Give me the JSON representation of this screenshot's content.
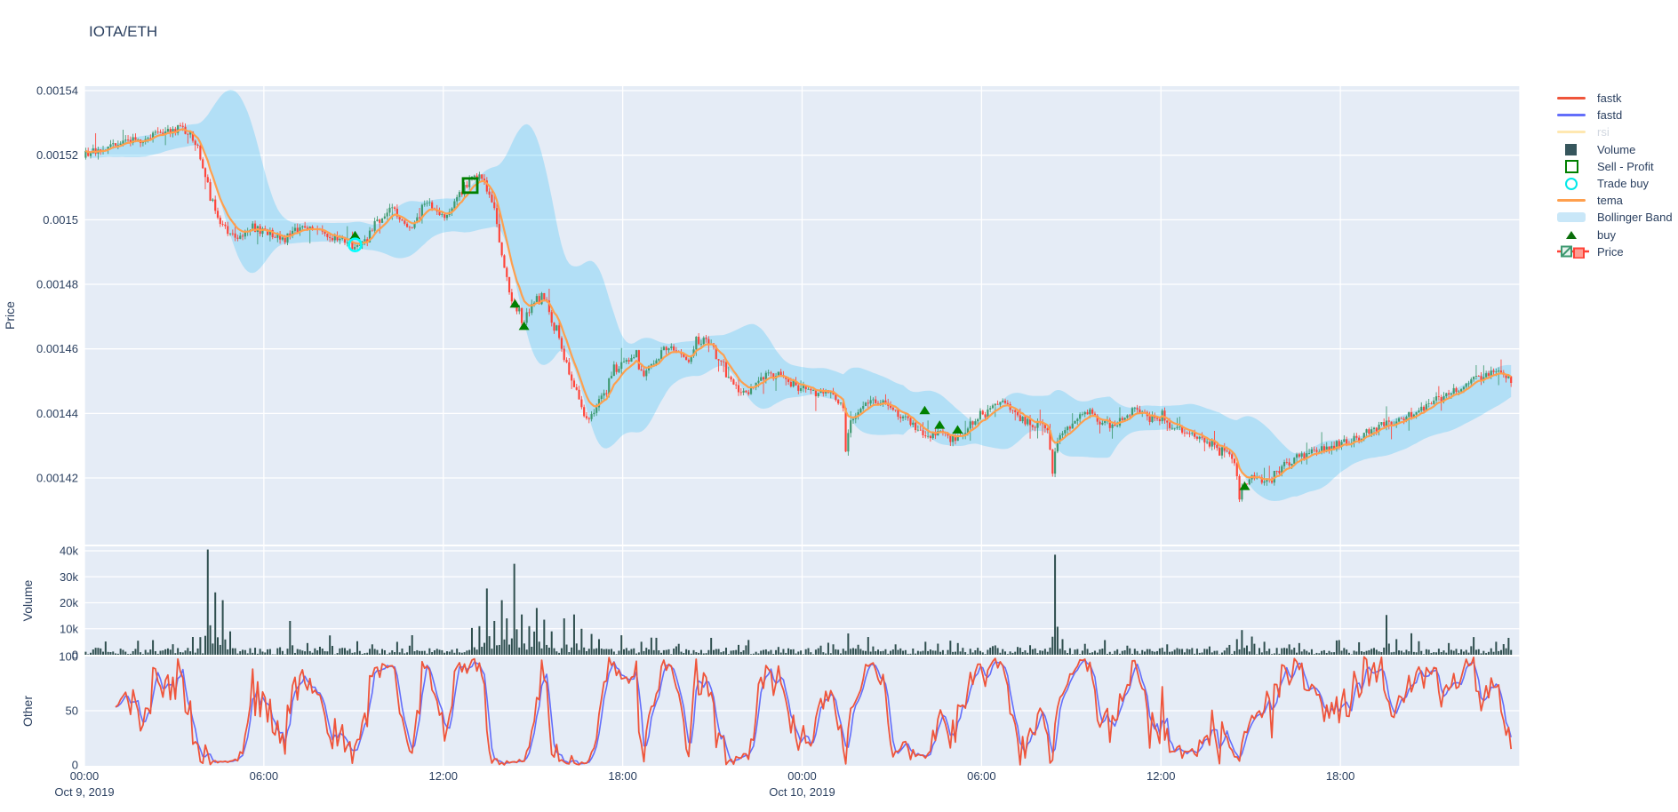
{
  "title": "IOTA/ETH",
  "colors": {
    "background": "#ffffff",
    "panel_bg": "#e5ecf6",
    "grid": "#ffffff",
    "text": "#2a3f5f",
    "candle_up": "#3D9970",
    "candle_down": "#FF4136",
    "tema": "#FF9F4D",
    "bollinger_fill": "rgba(0,176,246,0.22)",
    "volume_bar": "#2F4F4F",
    "fastk": "#EF553B",
    "fastd": "#636EFA",
    "rsi": "#FECB52",
    "buy_marker": "#008000",
    "trade_buy_marker": "#00FFFF",
    "sell_profit_marker": "#008000"
  },
  "legend": {
    "items": [
      {
        "label": "fastk",
        "type": "line",
        "color": "#EF553B",
        "enabled": true
      },
      {
        "label": "fastd",
        "type": "line",
        "color": "#636EFA",
        "enabled": true
      },
      {
        "label": "rsi",
        "type": "line",
        "color": "#FECB52",
        "enabled": false
      },
      {
        "label": "Volume",
        "type": "square",
        "color": "#36565C",
        "enabled": true
      },
      {
        "label": "Sell - Profit",
        "type": "square_open",
        "color": "#008000",
        "enabled": true
      },
      {
        "label": "Trade buy",
        "type": "circle_open",
        "color": "#00E8E8",
        "enabled": true
      },
      {
        "label": "tema",
        "type": "line",
        "color": "#FF9F4D",
        "enabled": true
      },
      {
        "label": "Bollinger Band",
        "type": "band",
        "color": "#C9E7F8",
        "enabled": true
      },
      {
        "label": "buy",
        "type": "triangle",
        "color": "#0A6E0A",
        "enabled": true
      },
      {
        "label": "Price",
        "type": "candle",
        "color": "#3D9970",
        "enabled": true
      }
    ]
  },
  "axes": {
    "price": {
      "title": "Price",
      "tick_labels": [
        "0.00154",
        "0.00152",
        "0.0015",
        "0.00148",
        "0.00146",
        "0.00144",
        "0.00142"
      ],
      "tick_values": [
        0.00154,
        0.00152,
        0.0015,
        0.00148,
        0.00146,
        0.00144,
        0.00142
      ]
    },
    "volume": {
      "title": "Volume",
      "tick_labels": [
        "40k",
        "30k",
        "20k",
        "10k",
        "0"
      ],
      "tick_values": [
        40000,
        30000,
        20000,
        10000,
        0
      ]
    },
    "other": {
      "title": "Other",
      "tick_labels": [
        "100",
        "50",
        "0"
      ],
      "tick_values": [
        100,
        50,
        0
      ]
    },
    "x": {
      "tick_hours": [
        0,
        6,
        12,
        18,
        24,
        30,
        36,
        42
      ],
      "tick_labels": [
        "00:00",
        "06:00",
        "12:00",
        "18:00",
        "00:00",
        "06:00",
        "12:00",
        "18:00"
      ],
      "date_labels": [
        {
          "hour": 0,
          "label": "Oct 9, 2019"
        },
        {
          "hour": 24,
          "label": "Oct 10, 2019"
        }
      ],
      "span_hours": 47.75
    }
  },
  "chart_data": [
    {
      "type": "candlestick",
      "name": "Price",
      "interval_minutes": 5,
      "x_unit": "hours from Oct 9, 2019 00:00",
      "ylim": [
        0.0014097,
        0.0015414
      ],
      "price_path_anchors": [
        [
          0,
          0.00152
        ],
        [
          0.4,
          0.001521
        ],
        [
          0.9,
          0.0015225
        ],
        [
          1.4,
          0.0015235
        ],
        [
          1.9,
          0.001525
        ],
        [
          2.4,
          0.001526
        ],
        [
          2.9,
          0.0015272
        ],
        [
          3.2,
          0.0015282
        ],
        [
          3.5,
          0.001527
        ],
        [
          3.8,
          0.0015235
        ],
        [
          4.05,
          0.0015155
        ],
        [
          4.25,
          0.001507
        ],
        [
          4.45,
          0.001501
        ],
        [
          4.7,
          0.0014975
        ],
        [
          5.1,
          0.0014952
        ],
        [
          5.5,
          0.0014962
        ],
        [
          5.9,
          0.001497
        ],
        [
          6.3,
          0.0014955
        ],
        [
          6.7,
          0.0014938
        ],
        [
          7.1,
          0.0014965
        ],
        [
          7.5,
          0.0014978
        ],
        [
          7.9,
          0.0014968
        ],
        [
          8.3,
          0.0014952
        ],
        [
          8.7,
          0.0014932
        ],
        [
          9.05,
          0.0014915
        ],
        [
          9.35,
          0.0014942
        ],
        [
          9.7,
          0.0014978
        ],
        [
          10,
          0.0015008
        ],
        [
          10.3,
          0.0015038
        ],
        [
          10.6,
          0.0015002
        ],
        [
          10.9,
          0.0014972
        ],
        [
          11.2,
          0.0015008
        ],
        [
          11.5,
          0.0015048
        ],
        [
          11.8,
          0.0015028
        ],
        [
          12.05,
          0.0015002
        ],
        [
          12.35,
          0.0015048
        ],
        [
          12.65,
          0.0015088
        ],
        [
          12.9,
          0.0015115
        ],
        [
          13.1,
          0.0015138
        ],
        [
          13.3,
          0.0015125
        ],
        [
          13.5,
          0.0015098
        ],
        [
          13.7,
          0.0015048
        ],
        [
          13.85,
          0.0014975
        ],
        [
          14,
          0.0014898
        ],
        [
          14.15,
          0.0014822
        ],
        [
          14.3,
          0.0014762
        ],
        [
          14.5,
          0.0014718
        ],
        [
          14.7,
          0.0014678
        ],
        [
          14.9,
          0.0014718
        ],
        [
          15.1,
          0.0014755
        ],
        [
          15.35,
          0.0014772
        ],
        [
          15.6,
          0.0014718
        ],
        [
          15.85,
          0.0014658
        ],
        [
          16.1,
          0.0014572
        ],
        [
          16.35,
          0.0014502
        ],
        [
          16.6,
          0.0014438
        ],
        [
          16.85,
          0.0014382
        ],
        [
          17.05,
          0.0014405
        ],
        [
          17.3,
          0.0014455
        ],
        [
          17.6,
          0.0014505
        ],
        [
          17.9,
          0.0014542
        ],
        [
          18.2,
          0.0014562
        ],
        [
          18.45,
          0.0014578
        ],
        [
          18.7,
          0.0014522
        ],
        [
          19,
          0.0014548
        ],
        [
          19.3,
          0.0014588
        ],
        [
          19.6,
          0.0014608
        ],
        [
          19.9,
          0.0014588
        ],
        [
          20.2,
          0.0014552
        ],
        [
          20.5,
          0.0014608
        ],
        [
          20.8,
          0.0014628
        ],
        [
          21.1,
          0.0014592
        ],
        [
          21.5,
          0.0014522
        ],
        [
          21.9,
          0.0014478
        ],
        [
          22.3,
          0.0014472
        ],
        [
          22.7,
          0.0014502
        ],
        [
          23.1,
          0.0014528
        ],
        [
          23.5,
          0.0014502
        ],
        [
          24,
          0.0014478
        ],
        [
          24.4,
          0.0014462
        ],
        [
          24.8,
          0.0014472
        ],
        [
          25.15,
          0.0014448
        ],
        [
          25.4,
          0.0014432
        ],
        [
          25.5,
          0.0014282
        ],
        [
          25.62,
          0.0014372
        ],
        [
          25.9,
          0.0014412
        ],
        [
          26.3,
          0.0014432
        ],
        [
          26.7,
          0.0014442
        ],
        [
          27.1,
          0.0014402
        ],
        [
          27.5,
          0.0014382
        ],
        [
          27.9,
          0.0014355
        ],
        [
          28.2,
          0.0014325
        ],
        [
          28.6,
          0.0014338
        ],
        [
          29,
          0.0014315
        ],
        [
          29.4,
          0.0014342
        ],
        [
          29.8,
          0.0014375
        ],
        [
          30.2,
          0.0014402
        ],
        [
          30.6,
          0.0014438
        ],
        [
          31,
          0.0014412
        ],
        [
          31.4,
          0.0014382
        ],
        [
          31.8,
          0.0014368
        ],
        [
          32.1,
          0.0014358
        ],
        [
          32.3,
          0.0014338
        ],
        [
          32.4,
          0.0014192
        ],
        [
          32.52,
          0.0014302
        ],
        [
          32.8,
          0.0014352
        ],
        [
          33.2,
          0.0014378
        ],
        [
          33.6,
          0.0014408
        ],
        [
          34,
          0.0014378
        ],
        [
          34.4,
          0.0014352
        ],
        [
          34.8,
          0.0014392
        ],
        [
          35.2,
          0.0014412
        ],
        [
          35.6,
          0.0014388
        ],
        [
          36,
          0.0014378
        ],
        [
          36.4,
          0.0014362
        ],
        [
          36.8,
          0.0014342
        ],
        [
          37.2,
          0.0014322
        ],
        [
          37.6,
          0.0014312
        ],
        [
          38,
          0.0014298
        ],
        [
          38.35,
          0.0014272
        ],
        [
          38.55,
          0.0014242
        ],
        [
          38.65,
          0.0014142
        ],
        [
          38.8,
          0.0014178
        ],
        [
          39.1,
          0.0014208
        ],
        [
          39.45,
          0.0014192
        ],
        [
          39.8,
          0.0014212
        ],
        [
          40.2,
          0.0014242
        ],
        [
          40.6,
          0.0014262
        ],
        [
          41,
          0.0014278
        ],
        [
          41.4,
          0.0014288
        ],
        [
          41.9,
          0.0014302
        ],
        [
          42.4,
          0.0014318
        ],
        [
          42.9,
          0.0014338
        ],
        [
          43.4,
          0.0014365
        ],
        [
          43.9,
          0.0014378
        ],
        [
          44.4,
          0.0014398
        ],
        [
          44.9,
          0.0014422
        ],
        [
          45.4,
          0.0014448
        ],
        [
          45.9,
          0.0014468
        ],
        [
          46.4,
          0.0014498
        ],
        [
          46.9,
          0.0014518
        ],
        [
          47.3,
          0.0014538
        ],
        [
          47.6,
          0.0014512
        ],
        [
          47.75,
          0.0014502
        ]
      ],
      "overlays": [
        {
          "name": "tema",
          "type": "line",
          "color": "#FF9F4D",
          "ema_span": 8
        },
        {
          "name": "Bollinger Band",
          "type": "band",
          "fill": "rgba(0,176,246,0.22)",
          "window": 24,
          "stdev_mult": 2.1
        },
        {
          "name": "rsi",
          "type": "line",
          "color": "#FECB52",
          "hidden": true
        }
      ],
      "markers": {
        "buy": [
          [
            9.05,
            0.0014952
          ],
          [
            14.4,
            0.001474
          ],
          [
            14.7,
            0.0014671
          ],
          [
            28.1,
            0.001441
          ],
          [
            28.6,
            0.0014365
          ],
          [
            29.2,
            0.001435
          ],
          [
            38.8,
            0.0014175
          ]
        ],
        "trade_buy": [
          [
            9.05,
            0.0014922
          ]
        ],
        "sell_profit": [
          [
            12.9,
            0.0015106
          ]
        ]
      }
    },
    {
      "type": "bar",
      "name": "Volume",
      "color": "#2F4F4F",
      "ylim": [
        0,
        42000
      ],
      "base_noise_range": [
        150,
        2600
      ],
      "spikes": [
        [
          4.1,
          40500
        ],
        [
          4.35,
          24000
        ],
        [
          4.6,
          21000
        ],
        [
          4.85,
          9000
        ],
        [
          6.8,
          13000
        ],
        [
          7.4,
          4500
        ],
        [
          9.05,
          5200
        ],
        [
          9.6,
          4000
        ],
        [
          10.8,
          3500
        ],
        [
          12.9,
          10300
        ],
        [
          13.15,
          11000
        ],
        [
          13.4,
          25500
        ],
        [
          13.65,
          13000
        ],
        [
          13.9,
          21000
        ],
        [
          14.1,
          14000
        ],
        [
          14.35,
          35000
        ],
        [
          14.6,
          15500
        ],
        [
          14.85,
          11000
        ],
        [
          15.1,
          18000
        ],
        [
          15.35,
          13500
        ],
        [
          15.6,
          9000
        ],
        [
          16,
          14000
        ],
        [
          16.3,
          15500
        ],
        [
          16.6,
          10000
        ],
        [
          16.9,
          8000
        ],
        [
          17.2,
          6000
        ],
        [
          17.9,
          7500
        ],
        [
          18.6,
          5000
        ],
        [
          19.8,
          4200
        ],
        [
          20.9,
          6500
        ],
        [
          21.8,
          3800
        ],
        [
          23.2,
          3000
        ],
        [
          24.6,
          3500
        ],
        [
          25.5,
          8200
        ],
        [
          26.3,
          3200
        ],
        [
          27.1,
          4000
        ],
        [
          28.1,
          5000
        ],
        [
          29.2,
          4500
        ],
        [
          30.4,
          3600
        ],
        [
          31.2,
          3000
        ],
        [
          32.4,
          38500
        ],
        [
          32.7,
          6000
        ],
        [
          33.4,
          4200
        ],
        [
          34.8,
          3500
        ],
        [
          36.2,
          4000
        ],
        [
          37.6,
          3200
        ],
        [
          38.65,
          9500
        ],
        [
          39,
          7000
        ],
        [
          39.4,
          5000
        ],
        [
          40.6,
          4500
        ],
        [
          41.8,
          5500
        ],
        [
          42.6,
          4800
        ],
        [
          43.5,
          15300
        ],
        [
          43.8,
          6000
        ],
        [
          44.6,
          5200
        ],
        [
          45.6,
          4500
        ],
        [
          46.4,
          6800
        ],
        [
          47.2,
          5000
        ],
        [
          47.6,
          6500
        ]
      ]
    },
    {
      "type": "line",
      "name": "Other",
      "ylim": [
        0,
        100
      ],
      "series": [
        {
          "name": "fastk",
          "color": "#EF553B",
          "derive": "stochastic_k",
          "window": 12
        },
        {
          "name": "fastd",
          "color": "#636EFA",
          "derive": "sma3_of_fastk"
        }
      ]
    }
  ]
}
